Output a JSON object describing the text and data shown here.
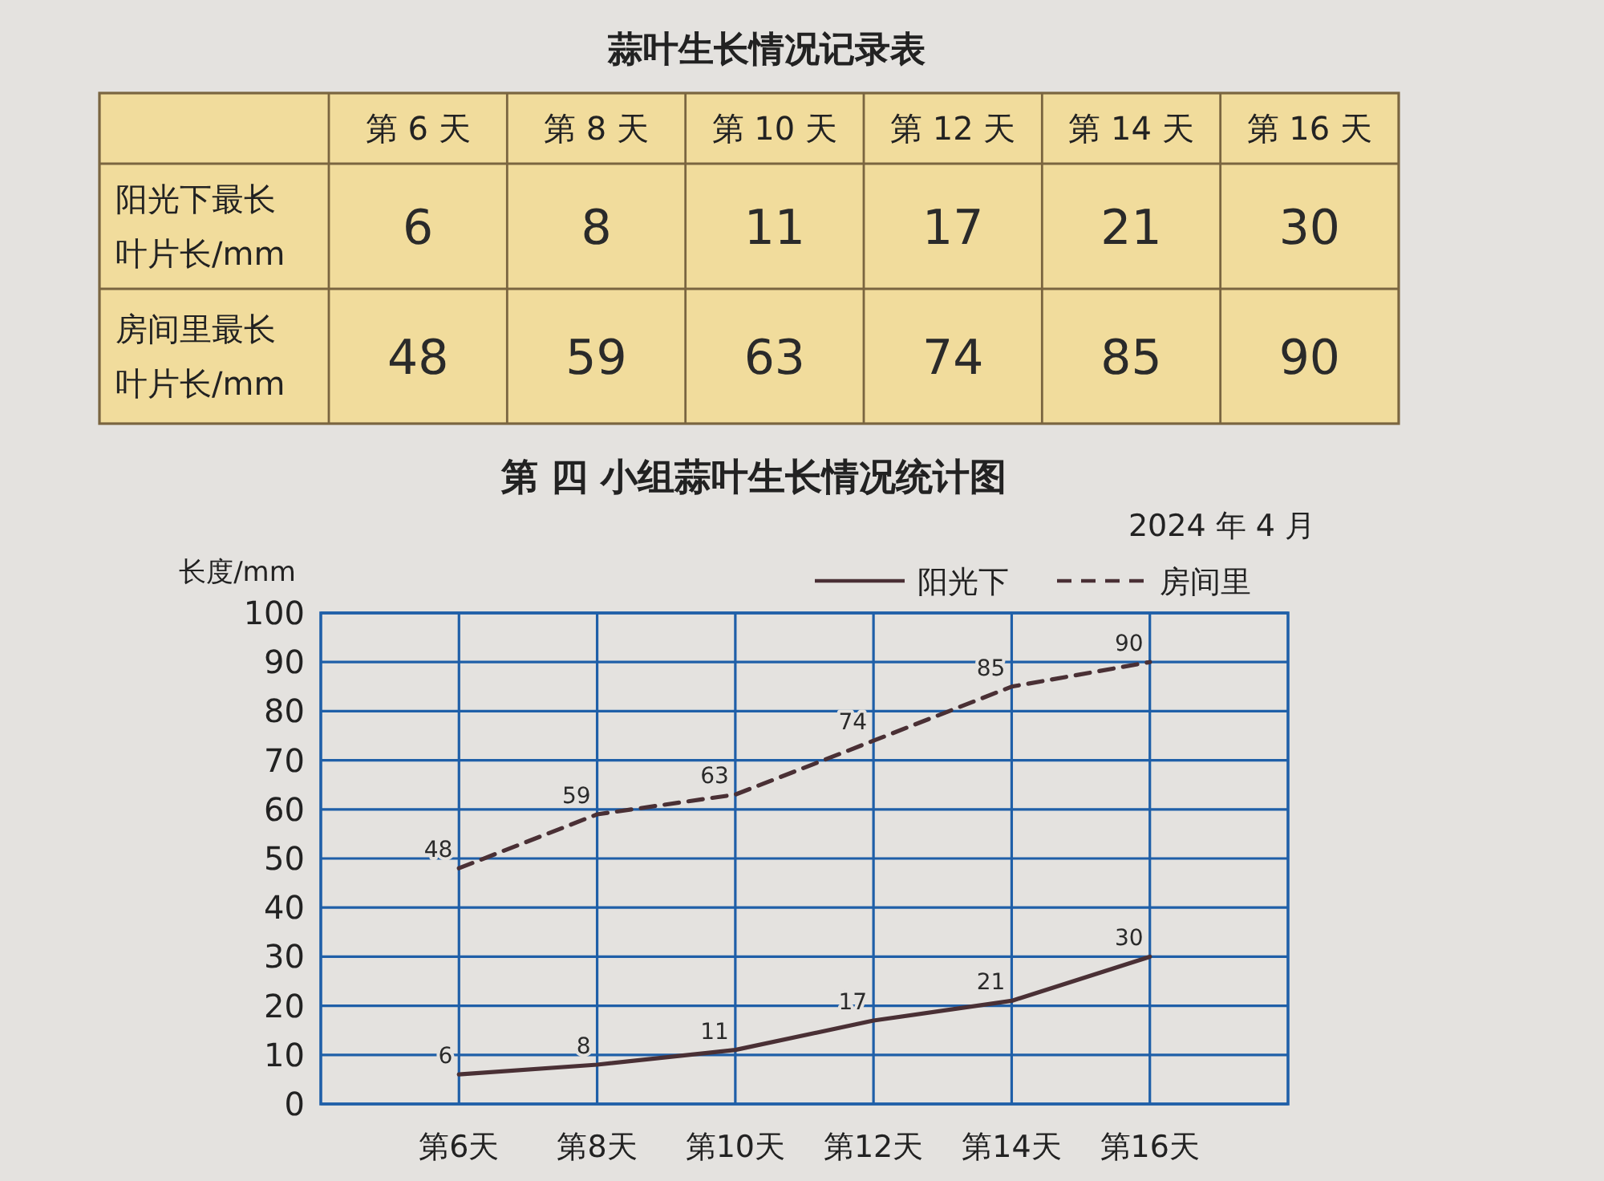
{
  "chart_data": [
    {
      "type": "other",
      "title": "蒜叶生长情况记录表",
      "categories": [
        "第 6 天",
        "第 8 天",
        "第 10 天",
        "第 12 天",
        "第 14 天",
        "第 16 天"
      ],
      "series": [
        {
          "name": "阳光下最长叶片长/mm",
          "values": [
            6,
            8,
            11,
            17,
            21,
            30
          ]
        },
        {
          "name": "房间里最长叶片长/mm",
          "values": [
            48,
            59,
            63,
            74,
            85,
            90
          ]
        }
      ],
      "data_labels": true
    },
    {
      "type": "line",
      "title": "第 四 小组蒜叶生长情况统计图",
      "ylabel": "长度/mm",
      "categories": [
        "第6天",
        "第8天",
        "第10天",
        "第12天",
        "第14天",
        "第16天"
      ],
      "series": [
        {
          "name": "阳光下",
          "color": "#4a3035",
          "line_style": "solid",
          "values": [
            6,
            8,
            11,
            17,
            21,
            30
          ]
        },
        {
          "name": "房间里",
          "color": "#4a3035",
          "line_style": "dashed",
          "values": [
            48,
            59,
            63,
            74,
            85,
            90
          ]
        }
      ],
      "ylim": [
        0,
        100
      ],
      "yticks": [
        0,
        10,
        20,
        30,
        40,
        50,
        60,
        70,
        80,
        90,
        100
      ],
      "grid": true,
      "legend": "top right",
      "data_labels": true,
      "annotations": [
        "2024 年 4 月"
      ]
    }
  ]
}
